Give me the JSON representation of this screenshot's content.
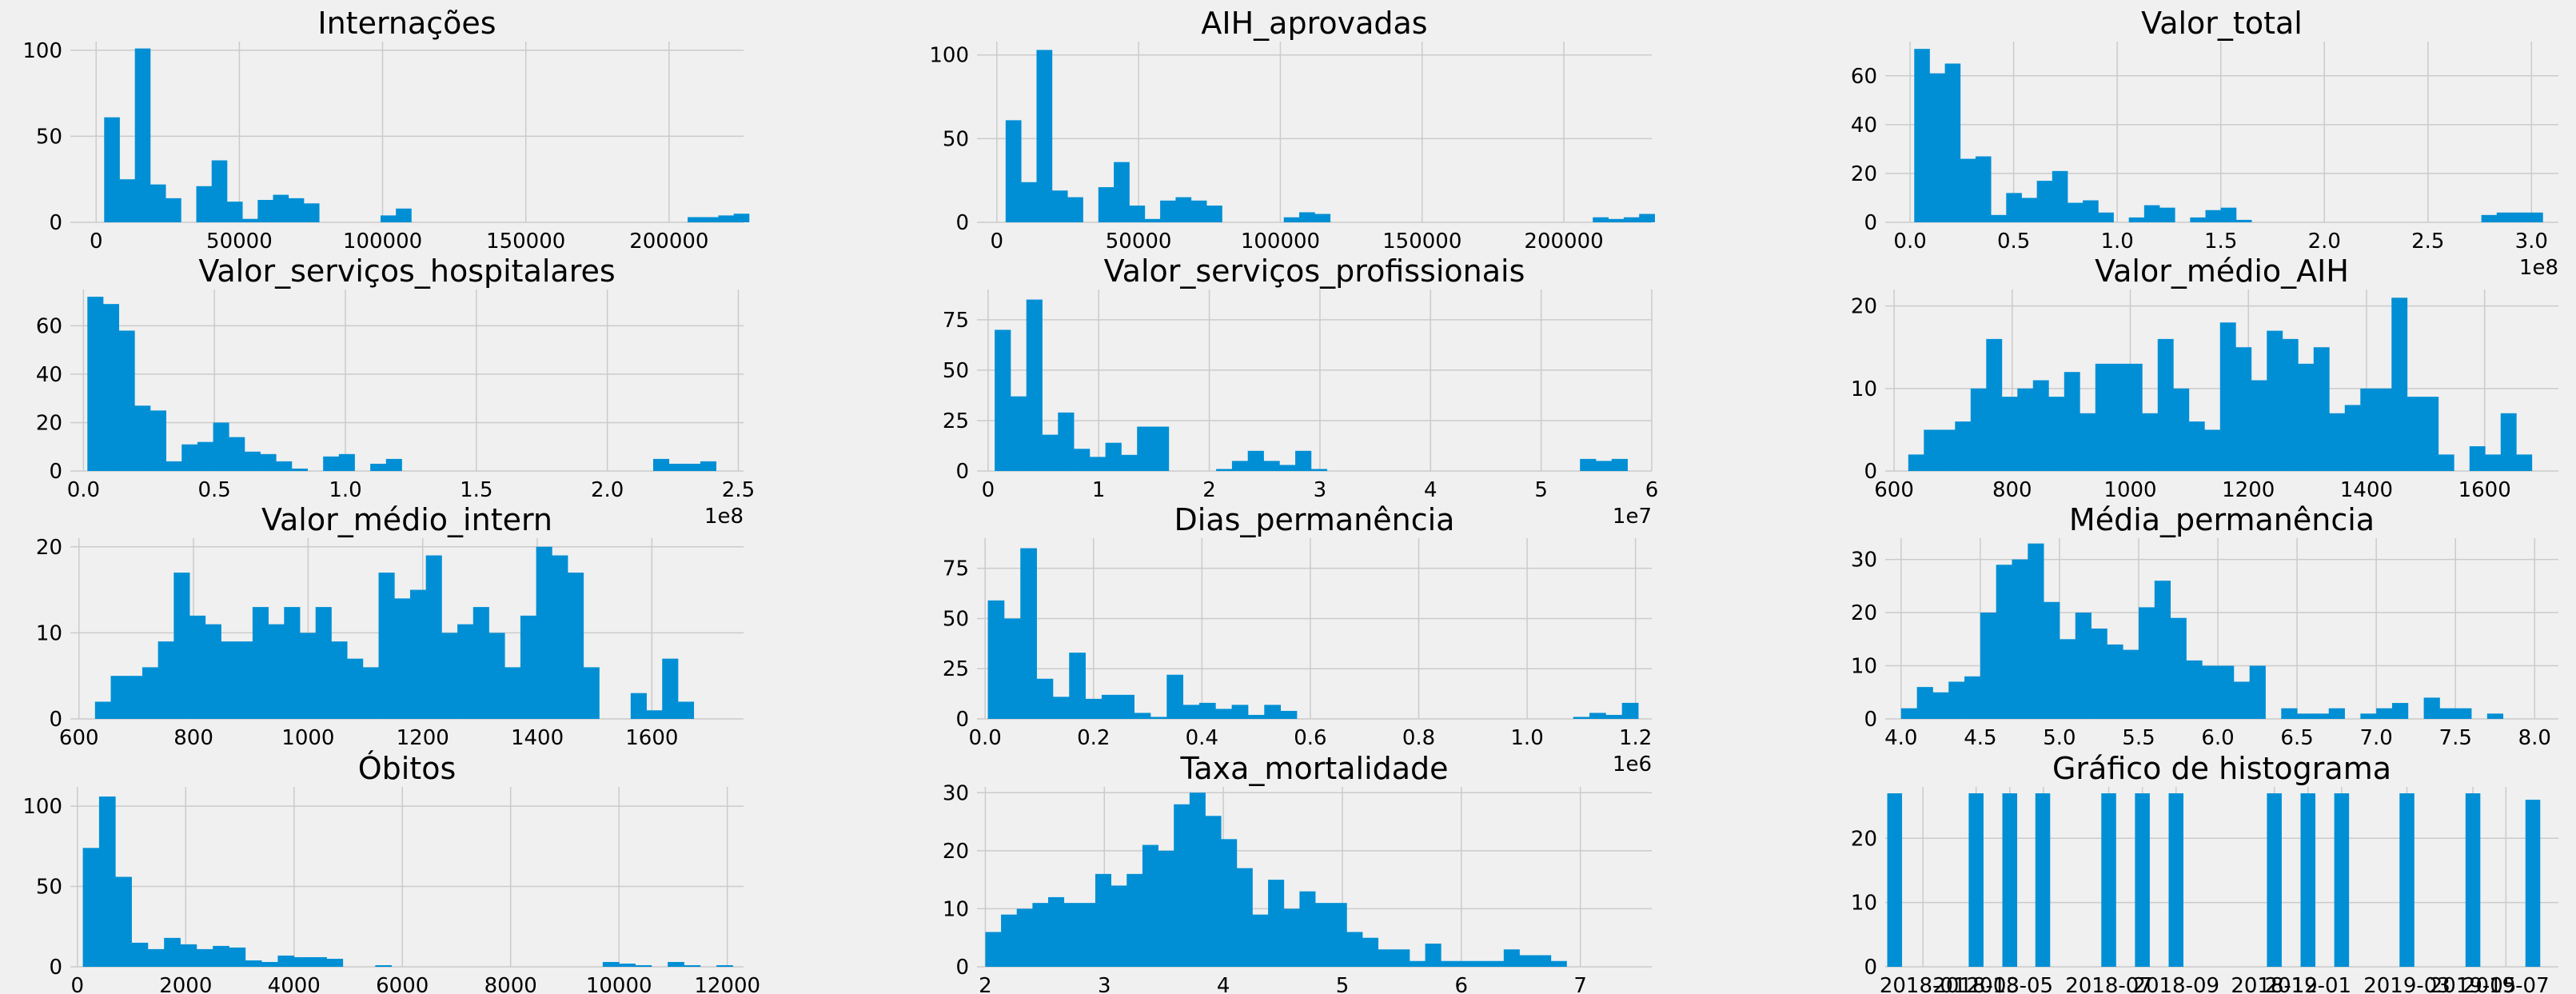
{
  "colors": {
    "background": "#f0f0f0",
    "bar": "#008fd5",
    "grid": "#cbcbcb",
    "text": "#000000"
  },
  "chart_data": [
    {
      "type": "bar",
      "title": "Internações",
      "xlim": [
        -9000,
        226000
      ],
      "ylim": [
        0,
        105
      ],
      "xticks": [
        0,
        50000,
        100000,
        150000,
        200000
      ],
      "xtick_labels": [
        "0",
        "50000",
        "100000",
        "150000",
        "200000"
      ],
      "yticks": [
        0,
        50,
        100
      ],
      "ytick_labels": [
        "0",
        "50",
        "100"
      ],
      "offset_label": "",
      "bin_start": 2800,
      "bin_width": 5360,
      "values": [
        61,
        25,
        101,
        22,
        14,
        0,
        21,
        36,
        12,
        2,
        13,
        16,
        14,
        11,
        0,
        0,
        0,
        0,
        4,
        8,
        0,
        0,
        0,
        0,
        0,
        0,
        0,
        0,
        0,
        0,
        0,
        0,
        0,
        0,
        0,
        0,
        0,
        0,
        3,
        3,
        4,
        5
      ]
    },
    {
      "type": "bar",
      "title": "AIH_aprovadas",
      "xlim": [
        -7000,
        231000
      ],
      "ylim": [
        0,
        108
      ],
      "xticks": [
        0,
        50000,
        100000,
        150000,
        200000
      ],
      "xtick_labels": [
        "0",
        "50000",
        "100000",
        "150000",
        "200000"
      ],
      "yticks": [
        0,
        50,
        100
      ],
      "ytick_labels": [
        "0",
        "50",
        "100"
      ],
      "offset_label": "",
      "bin_start": 3100,
      "bin_width": 5450,
      "values": [
        61,
        24,
        103,
        19,
        15,
        0,
        21,
        36,
        10,
        2,
        13,
        15,
        13,
        10,
        0,
        0,
        0,
        0,
        3,
        6,
        5,
        0,
        0,
        0,
        0,
        0,
        0,
        0,
        0,
        0,
        0,
        0,
        0,
        0,
        0,
        0,
        0,
        0,
        3,
        2,
        3,
        5
      ]
    },
    {
      "type": "bar",
      "title": "Valor_total",
      "xlim": [
        -0.12,
        3.13
      ],
      "ylim": [
        0,
        74
      ],
      "xticks": [
        0.0,
        0.5,
        1.0,
        1.5,
        2.0,
        2.5,
        3.0
      ],
      "xtick_labels": [
        "0.0",
        "0.5",
        "1.0",
        "1.5",
        "2.0",
        "2.5",
        "3.0"
      ],
      "yticks": [
        0,
        20,
        40,
        60
      ],
      "ytick_labels": [
        "0",
        "20",
        "40",
        "60"
      ],
      "offset_label": "1e8",
      "bin_start": 0.02,
      "bin_width": 0.074,
      "values": [
        71,
        61,
        65,
        26,
        27,
        3,
        12,
        10,
        17,
        21,
        8,
        9,
        4,
        0,
        2,
        7,
        6,
        0,
        2,
        5,
        6,
        1,
        0,
        0,
        0,
        0,
        0,
        0,
        0,
        0,
        0,
        0,
        0,
        0,
        0,
        0,
        0,
        3,
        4,
        4,
        4
      ]
    },
    {
      "type": "bar",
      "title": "Valor_serviços_hospitalares",
      "xlim": [
        -0.05,
        2.52
      ],
      "ylim": [
        0,
        75
      ],
      "xticks": [
        0.0,
        0.5,
        1.0,
        1.5,
        2.0,
        2.5
      ],
      "xtick_labels": [
        "0.0",
        "0.5",
        "1.0",
        "1.5",
        "2.0",
        "2.5"
      ],
      "yticks": [
        0,
        20,
        40,
        60
      ],
      "ytick_labels": [
        "0",
        "20",
        "40",
        "60"
      ],
      "offset_label": "1e8",
      "bin_start": 0.015,
      "bin_width": 0.06,
      "values": [
        72,
        69,
        58,
        27,
        25,
        4,
        11,
        12,
        20,
        14,
        8,
        7,
        4,
        1,
        0,
        6,
        7,
        0,
        3,
        5,
        0,
        0,
        0,
        0,
        0,
        0,
        0,
        0,
        0,
        0,
        0,
        0,
        0,
        0,
        0,
        0,
        5,
        3,
        3,
        4
      ]
    },
    {
      "type": "bar",
      "title": "Valor_serviços_profissionais",
      "xlim": [
        -0.1,
        6.0
      ],
      "ylim": [
        0,
        90
      ],
      "xticks": [
        0,
        1,
        2,
        3,
        4,
        5,
        6
      ],
      "xtick_labels": [
        "0",
        "1",
        "2",
        "3",
        "4",
        "5",
        "6"
      ],
      "yticks": [
        0,
        25,
        50,
        75
      ],
      "ytick_labels": [
        "0",
        "25",
        "50",
        "75"
      ],
      "offset_label": "1e7",
      "bin_start": 0.06,
      "bin_width": 0.143,
      "values": [
        70,
        37,
        85,
        18,
        29,
        11,
        7,
        14,
        8,
        22,
        22,
        0,
        0,
        0,
        1,
        5,
        10,
        5,
        3,
        10,
        1,
        0,
        0,
        0,
        0,
        0,
        0,
        0,
        0,
        0,
        0,
        0,
        0,
        0,
        0,
        0,
        0,
        6,
        5,
        6
      ]
    },
    {
      "type": "bar",
      "title": "Valor_médio_AIH",
      "xlim": [
        585,
        1725
      ],
      "ylim": [
        0,
        22
      ],
      "xticks": [
        600,
        800,
        1000,
        1200,
        1400,
        1600
      ],
      "xtick_labels": [
        "600",
        "800",
        "1000",
        "1200",
        "1400",
        "1600"
      ],
      "yticks": [
        0,
        10,
        20
      ],
      "ytick_labels": [
        "0",
        "10",
        "20"
      ],
      "offset_label": "",
      "bin_start": 624,
      "bin_width": 26.4,
      "values": [
        2,
        5,
        5,
        6,
        10,
        16,
        9,
        10,
        11,
        9,
        12,
        7,
        13,
        13,
        13,
        7,
        16,
        10,
        6,
        5,
        18,
        15,
        11,
        17,
        16,
        13,
        15,
        7,
        8,
        10,
        10,
        21,
        9,
        9,
        2,
        0,
        3,
        2,
        7,
        2
      ]
    },
    {
      "type": "bar",
      "title": "Valor_médio_intern",
      "xlim": [
        585,
        1760
      ],
      "ylim": [
        0,
        21
      ],
      "xticks": [
        600,
        800,
        1000,
        1200,
        1400,
        1600
      ],
      "xtick_labels": [
        "600",
        "800",
        "1000",
        "1200",
        "1400",
        "1600"
      ],
      "yticks": [
        0,
        10,
        20
      ],
      "ytick_labels": [
        "0",
        "10",
        "20"
      ],
      "offset_label": "",
      "bin_start": 628,
      "bin_width": 27.5,
      "values": [
        2,
        5,
        5,
        6,
        9,
        17,
        12,
        11,
        9,
        9,
        13,
        11,
        13,
        10,
        13,
        9,
        7,
        6,
        17,
        14,
        15,
        19,
        10,
        11,
        13,
        10,
        6,
        12,
        20,
        19,
        17,
        6,
        0,
        0,
        3,
        1,
        7,
        2
      ]
    },
    {
      "type": "bar",
      "title": "Dias_permanência",
      "xlim": [
        -0.015,
        1.23
      ],
      "ylim": [
        0,
        90
      ],
      "xticks": [
        0.0,
        0.2,
        0.4,
        0.6,
        0.8,
        1.0,
        1.2
      ],
      "xtick_labels": [
        "0.0",
        "0.2",
        "0.4",
        "0.6",
        "0.8",
        "1.0",
        "1.2"
      ],
      "yticks": [
        0,
        25,
        50,
        75
      ],
      "ytick_labels": [
        "0",
        "25",
        "50",
        "75"
      ],
      "offset_label": "1e6",
      "bin_start": 0.005,
      "bin_width": 0.03,
      "values": [
        59,
        50,
        85,
        20,
        11,
        33,
        10,
        12,
        12,
        3,
        1,
        22,
        7,
        8,
        5,
        7,
        2,
        7,
        4,
        0,
        0,
        0,
        0,
        0,
        0,
        0,
        0,
        0,
        0,
        0,
        0,
        0,
        0,
        0,
        0,
        0,
        1,
        3,
        2,
        8
      ]
    },
    {
      "type": "bar",
      "title": "Média_permanência",
      "xlim": [
        3.9,
        8.15
      ],
      "ylim": [
        0,
        34
      ],
      "xticks": [
        4.0,
        4.5,
        5.0,
        5.5,
        6.0,
        6.5,
        7.0,
        7.5,
        8.0
      ],
      "xtick_labels": [
        "4.0",
        "4.5",
        "5.0",
        "5.5",
        "6.0",
        "6.5",
        "7.0",
        "7.5",
        "8.0"
      ],
      "yticks": [
        0,
        10,
        20,
        30
      ],
      "ytick_labels": [
        "0",
        "10",
        "20",
        "30"
      ],
      "offset_label": "",
      "bin_start": 4.0,
      "bin_width": 0.1,
      "values": [
        2,
        6,
        5,
        7,
        8,
        20,
        29,
        30,
        33,
        22,
        15,
        20,
        17,
        14,
        13,
        21,
        26,
        19,
        11,
        10,
        10,
        7,
        10,
        0,
        2,
        1,
        1,
        2,
        0,
        1,
        2,
        3,
        0,
        4,
        2,
        2,
        0,
        1,
        0,
        0
      ]
    },
    {
      "type": "bar",
      "title": "Óbitos",
      "xlim": [
        -130,
        12300
      ],
      "ylim": [
        0,
        112
      ],
      "xticks": [
        0,
        2000,
        4000,
        6000,
        8000,
        10000,
        12000
      ],
      "xtick_labels": [
        "0",
        "2000",
        "4000",
        "6000",
        "8000",
        "10000",
        "12000"
      ],
      "yticks": [
        0,
        50,
        100
      ],
      "ytick_labels": [
        "0",
        "50",
        "100"
      ],
      "offset_label": "",
      "bin_start": 100,
      "bin_width": 300,
      "values": [
        74,
        106,
        56,
        15,
        11,
        18,
        14,
        11,
        13,
        12,
        4,
        3,
        7,
        6,
        6,
        5,
        0,
        0,
        1,
        0,
        0,
        0,
        0,
        0,
        0,
        0,
        0,
        0,
        0,
        0,
        0,
        0,
        3,
        2,
        1,
        0,
        3,
        1,
        0,
        1
      ]
    },
    {
      "type": "bar",
      "title": "Taxa_mortalidade",
      "xlim": [
        1.93,
        7.6
      ],
      "ylim": [
        0,
        31
      ],
      "xticks": [
        2,
        3,
        4,
        5,
        6,
        7
      ],
      "xtick_labels": [
        "2",
        "3",
        "4",
        "5",
        "6",
        "7"
      ],
      "yticks": [
        0,
        10,
        20,
        30
      ],
      "ytick_labels": [
        "0",
        "10",
        "20",
        "30"
      ],
      "offset_label": "",
      "bin_start": 2.0,
      "bin_width": 0.132,
      "values": [
        6,
        9,
        10,
        11,
        12,
        11,
        11,
        16,
        14,
        16,
        21,
        20,
        28,
        30,
        26,
        22,
        17,
        9,
        15,
        10,
        13,
        11,
        11,
        6,
        5,
        3,
        3,
        1,
        4,
        1,
        1,
        1,
        1,
        3,
        2,
        2,
        1
      ]
    },
    {
      "type": "bar",
      "title": "Gráfico de histograma",
      "xlim": [
        0,
        1
      ],
      "ylim": [
        0,
        28
      ],
      "xticks": [
        0.056,
        0.135,
        0.185,
        0.235,
        0.332,
        0.382,
        0.432,
        0.578,
        0.628,
        0.678,
        0.775,
        0.873,
        0.922
      ],
      "xtick_labels": [
        "2018-01",
        "2018-03",
        "2018-05",
        "2018-07",
        "2018-09",
        "2018-12",
        "2019-01",
        "2019-03",
        "2019-05",
        "2019-07"
      ],
      "xtick_label_positions": [
        0.056,
        0.135,
        0.185,
        0.332,
        0.432,
        0.578,
        0.628,
        0.775,
        0.873,
        0.922
      ],
      "yticks": [
        0,
        10,
        20
      ],
      "ytick_labels": [
        "0",
        "10",
        "20"
      ],
      "offset_label": "",
      "bar_centers": [
        0.014,
        0.135,
        0.185,
        0.234,
        0.332,
        0.382,
        0.432,
        0.578,
        0.628,
        0.678,
        0.775,
        0.873,
        0.962
      ],
      "bar_width": 0.022,
      "values": [
        27,
        27,
        27,
        27,
        27,
        27,
        27,
        27,
        27,
        27,
        27,
        27,
        26
      ]
    }
  ]
}
